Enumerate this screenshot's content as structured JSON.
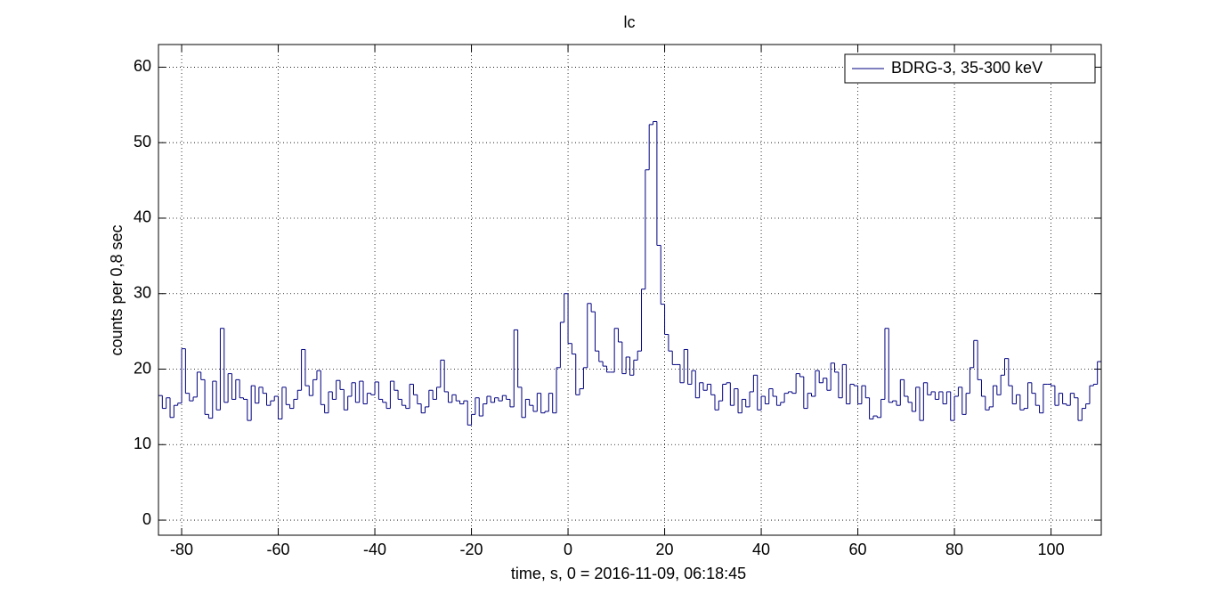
{
  "chart_data": {
    "type": "histogram",
    "title": "lc",
    "x_label": "time, s, 0 = 2016-11-09, 06:18:45",
    "y_label": "counts per 0,8 sec",
    "bins": [
      -84.8,
      -84,
      -83.2,
      -82.4,
      -81.6,
      -80.8,
      -80,
      -79.2,
      -78.4,
      -77.6,
      -76.8,
      -76,
      -75.2,
      -74.4,
      -73.6,
      -72.8,
      -72,
      -71.2,
      -70.4,
      -69.6,
      -68.8,
      -68,
      -67.2,
      -66.4,
      -65.6,
      -64.8,
      -64,
      -63.2,
      -62.4,
      -61.6,
      -60.8,
      -60,
      -59.2,
      -58.4,
      -57.6,
      -56.8,
      -56,
      -55.2,
      -54.4,
      -53.6,
      -52.8,
      -52,
      -51.2,
      -50.4,
      -49.6,
      -48.8,
      -48,
      -47.2,
      -46.4,
      -45.6,
      -44.8,
      -44,
      -43.2,
      -42.4,
      -41.6,
      -40.8,
      -40,
      -39.2,
      -38.4,
      -37.6,
      -36.8,
      -36,
      -35.2,
      -34.4,
      -33.6,
      -32.8,
      -32,
      -31.2,
      -30.4,
      -29.6,
      -28.8,
      -28,
      -27.2,
      -26.4,
      -25.6,
      -24.8,
      -24,
      -23.2,
      -22.4,
      -21.6,
      -20.8,
      -20,
      -19.2,
      -18.4,
      -17.6,
      -16.8,
      -16,
      -15.2,
      -14.4,
      -13.6,
      -12.8,
      -12,
      -11.2,
      -10.4,
      -9.6,
      -8.8,
      -8,
      -7.2,
      -6.4,
      -5.6,
      -4.8,
      -4,
      -3.2,
      -2.4,
      -1.6,
      -0.8,
      0,
      0.8,
      1.6,
      2.4,
      3.2,
      4,
      4.8,
      5.6,
      6.4,
      7.2,
      8,
      8.8,
      9.6,
      10.4,
      11.2,
      12,
      12.8,
      13.6,
      14.4,
      15.2,
      16,
      16.8,
      17.6,
      18.4,
      19.2,
      20,
      20.8,
      21.6,
      22.4,
      23.2,
      24,
      24.8,
      25.6,
      26.4,
      27.2,
      28,
      28.8,
      29.6,
      30.4,
      31.2,
      32,
      32.8,
      33.6,
      34.4,
      35.2,
      36,
      36.8,
      37.6,
      38.4,
      39.2,
      40,
      40.8,
      41.6,
      42.4,
      43.2,
      44,
      44.8,
      45.6,
      46.4,
      47.2,
      48,
      48.8,
      49.6,
      50.4,
      51.2,
      52,
      52.8,
      53.6,
      54.4,
      55.2,
      56,
      56.8,
      57.6,
      58.4,
      59.2,
      60,
      60.8,
      61.6,
      62.4,
      63.2,
      64,
      64.8,
      65.6,
      66.4,
      67.2,
      68,
      68.8,
      69.6,
      70.4,
      71.2,
      72,
      72.8,
      73.6,
      74.4,
      75.2,
      76,
      76.8,
      77.6,
      78.4,
      79.2,
      80,
      80.8,
      81.6,
      82.4,
      83.2,
      84,
      84.8,
      85.6,
      86.4,
      87.2,
      88,
      88.8,
      89.6,
      90.4,
      91.2,
      92,
      92.8,
      93.6,
      94.4,
      95.2,
      96,
      96.8,
      97.6,
      98.4,
      99.2,
      100,
      100.8,
      101.6,
      102.4,
      103.2,
      104,
      104.8,
      105.6,
      106.4,
      107.2,
      108,
      108.8,
      109.6,
      110.4
    ],
    "series": [
      {
        "name": "BDRG-3, 35-300 keV",
        "color": "#000080",
        "values": [
          16.5,
          14.8,
          16.2,
          13.6,
          15.2,
          15.5,
          22.7,
          16.8,
          15.8,
          16.3,
          19.6,
          18.6,
          14.0,
          13.5,
          18.4,
          14.6,
          25.4,
          15.6,
          19.4,
          16.0,
          18.6,
          16.2,
          16.0,
          13.2,
          17.8,
          15.5,
          17.6,
          16.8,
          15.2,
          15.8,
          16.4,
          13.4,
          17.6,
          15.3,
          14.8,
          16.0,
          17.2,
          22.6,
          17.8,
          16.5,
          18.6,
          19.8,
          15.3,
          14.2,
          17.0,
          16.0,
          18.5,
          17.3,
          14.6,
          16.4,
          18.2,
          15.6,
          18.4,
          15.4,
          16.8,
          16.6,
          18.3,
          16.0,
          15.6,
          14.8,
          18.4,
          17.2,
          16.0,
          15.2,
          14.8,
          18.0,
          16.6,
          15.4,
          14.2,
          15.0,
          17.2,
          16.0,
          17.6,
          21.2,
          17.0,
          15.6,
          16.6,
          15.8,
          15.4,
          15.8,
          12.6,
          14.0,
          16.2,
          13.8,
          15.4,
          16.4,
          15.6,
          16.2,
          15.8,
          16.5,
          16.0,
          15.0,
          25.2,
          17.6,
          13.6,
          16.0,
          15.2,
          14.4,
          16.8,
          14.2,
          14.4,
          16.8,
          14.2,
          20.2,
          26.2,
          30.0,
          23.4,
          22.0,
          16.6,
          17.4,
          20.2,
          28.7,
          27.6,
          22.4,
          21.0,
          20.4,
          19.6,
          19.6,
          25.4,
          23.6,
          19.4,
          21.6,
          19.2,
          21.2,
          22.4,
          30.6,
          46.4,
          52.4,
          52.8,
          36.4,
          28.6,
          24.6,
          22.4,
          20.6,
          20.6,
          18.2,
          22.6,
          18.0,
          19.8,
          16.2,
          18.2,
          17.2,
          18.0,
          16.6,
          14.6,
          15.8,
          18.0,
          18.2,
          15.2,
          17.4,
          14.2,
          16.0,
          15.0,
          17.0,
          19.2,
          14.6,
          16.4,
          15.4,
          17.4,
          16.4,
          15.2,
          15.6,
          16.8,
          17.0,
          16.8,
          19.4,
          19.0,
          14.8,
          16.8,
          16.4,
          19.8,
          18.2,
          18.8,
          17.2,
          20.8,
          19.6,
          16.2,
          20.6,
          15.4,
          18.0,
          17.8,
          15.4,
          17.8,
          16.2,
          13.4,
          13.8,
          13.6,
          16.0,
          25.4,
          15.6,
          15.8,
          15.2,
          18.6,
          16.4,
          15.6,
          14.4,
          17.6,
          13.2,
          18.2,
          16.6,
          17.0,
          16.0,
          17.0,
          15.4,
          17.0,
          13.2,
          16.4,
          17.6,
          14.0,
          16.8,
          20.2,
          23.8,
          18.6,
          16.4,
          14.6,
          15.0,
          17.8,
          16.6,
          19.2,
          21.4,
          17.8,
          15.4,
          16.6,
          14.6,
          14.8,
          18.2,
          16.8,
          15.2,
          14.2,
          18.0,
          18.0,
          17.8,
          15.2,
          16.8,
          15.4,
          15.2,
          16.8,
          16.2,
          13.2,
          14.8,
          15.4,
          17.8,
          18.0,
          21.0
        ]
      }
    ],
    "xlim": [
      -84.8,
      110.4
    ],
    "ylim": [
      -2,
      63
    ],
    "xticks": [
      -80,
      -60,
      -40,
      -20,
      0,
      20,
      40,
      60,
      80,
      100
    ],
    "yticks": [
      0,
      10,
      20,
      30,
      40,
      50,
      60
    ],
    "grid": true,
    "legend": "upper right"
  }
}
